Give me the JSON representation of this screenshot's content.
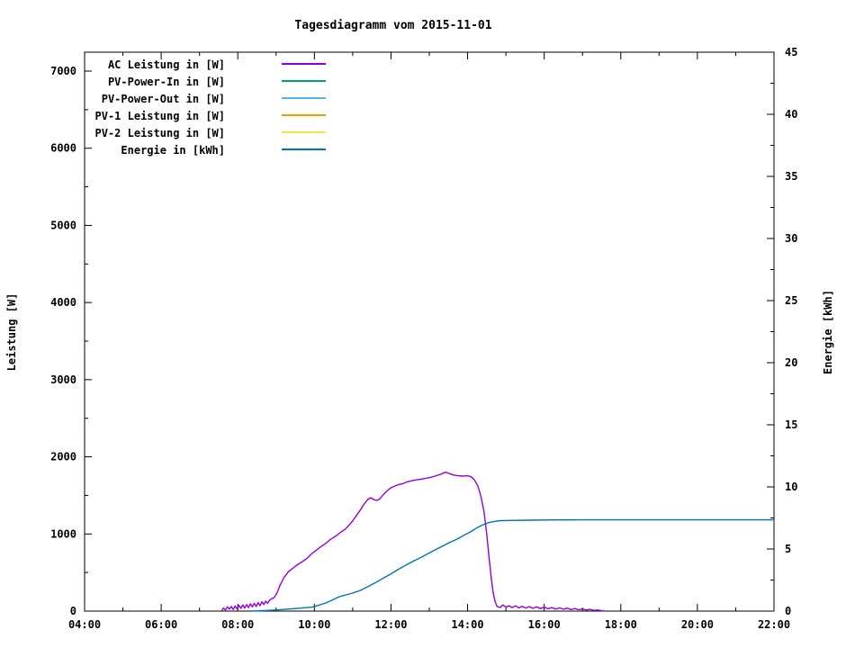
{
  "chart_data": {
    "type": "line",
    "title": "Tagesdiagramm vom 2015-11-01",
    "grid": false,
    "legend_position": "top-left-inside",
    "x": {
      "min": 4,
      "max": 22,
      "tick_step_hours": 2,
      "minor_step_hours": 1,
      "tick_labels": [
        "04:00",
        "06:00",
        "08:00",
        "10:00",
        "12:00",
        "14:00",
        "16:00",
        "18:00",
        "20:00",
        "22:00"
      ]
    },
    "y_left": {
      "label": "Leistung [W]",
      "min": 0,
      "max": 7000,
      "tick_step": 1000,
      "minor_step": 500,
      "tick_labels": [
        "0",
        "1000",
        "2000",
        "3000",
        "4000",
        "5000",
        "6000",
        "7000"
      ]
    },
    "y_right": {
      "label": "Energie [kWh]",
      "min": 0,
      "max": 45,
      "tick_step": 5,
      "minor_step": 2.5,
      "tick_labels": [
        "0",
        "5",
        "10",
        "15",
        "20",
        "25",
        "30",
        "35",
        "40",
        "45"
      ]
    },
    "series": [
      {
        "name": "AC Leistung in [W]",
        "color": "#9400d3",
        "axis": "left",
        "points": [
          [
            7.58,
            5
          ],
          [
            7.63,
            40
          ],
          [
            7.68,
            15
          ],
          [
            7.73,
            55
          ],
          [
            7.78,
            25
          ],
          [
            7.83,
            60
          ],
          [
            7.88,
            20
          ],
          [
            7.93,
            65
          ],
          [
            7.98,
            30
          ],
          [
            8.03,
            75
          ],
          [
            8.08,
            35
          ],
          [
            8.13,
            80
          ],
          [
            8.18,
            40
          ],
          [
            8.23,
            85
          ],
          [
            8.28,
            45
          ],
          [
            8.33,
            95
          ],
          [
            8.38,
            55
          ],
          [
            8.43,
            100
          ],
          [
            8.48,
            60
          ],
          [
            8.53,
            110
          ],
          [
            8.58,
            70
          ],
          [
            8.63,
            120
          ],
          [
            8.68,
            85
          ],
          [
            8.73,
            130
          ],
          [
            8.78,
            100
          ],
          [
            8.83,
            140
          ],
          [
            8.88,
            160
          ],
          [
            8.95,
            175
          ],
          [
            9.02,
            230
          ],
          [
            9.1,
            330
          ],
          [
            9.2,
            430
          ],
          [
            9.32,
            510
          ],
          [
            9.45,
            560
          ],
          [
            9.55,
            600
          ],
          [
            9.68,
            640
          ],
          [
            9.8,
            680
          ],
          [
            9.92,
            740
          ],
          [
            10.05,
            790
          ],
          [
            10.18,
            840
          ],
          [
            10.3,
            880
          ],
          [
            10.42,
            930
          ],
          [
            10.55,
            970
          ],
          [
            10.68,
            1020
          ],
          [
            10.8,
            1060
          ],
          [
            10.9,
            1110
          ],
          [
            11.0,
            1170
          ],
          [
            11.1,
            1240
          ],
          [
            11.2,
            1310
          ],
          [
            11.3,
            1390
          ],
          [
            11.4,
            1450
          ],
          [
            11.47,
            1470
          ],
          [
            11.55,
            1445
          ],
          [
            11.62,
            1435
          ],
          [
            11.7,
            1450
          ],
          [
            11.8,
            1510
          ],
          [
            11.9,
            1560
          ],
          [
            12.0,
            1600
          ],
          [
            12.1,
            1620
          ],
          [
            12.2,
            1640
          ],
          [
            12.3,
            1650
          ],
          [
            12.42,
            1675
          ],
          [
            12.55,
            1690
          ],
          [
            12.7,
            1705
          ],
          [
            12.85,
            1715
          ],
          [
            13.0,
            1730
          ],
          [
            13.15,
            1750
          ],
          [
            13.3,
            1775
          ],
          [
            13.42,
            1800
          ],
          [
            13.52,
            1785
          ],
          [
            13.62,
            1765
          ],
          [
            13.75,
            1755
          ],
          [
            13.88,
            1750
          ],
          [
            14.0,
            1755
          ],
          [
            14.1,
            1740
          ],
          [
            14.18,
            1700
          ],
          [
            14.27,
            1620
          ],
          [
            14.35,
            1480
          ],
          [
            14.43,
            1280
          ],
          [
            14.5,
            1000
          ],
          [
            14.56,
            700
          ],
          [
            14.62,
            420
          ],
          [
            14.67,
            230
          ],
          [
            14.72,
            120
          ],
          [
            14.77,
            60
          ],
          [
            14.85,
            45
          ],
          [
            14.92,
            80
          ],
          [
            15.0,
            50
          ],
          [
            15.08,
            70
          ],
          [
            15.16,
            45
          ],
          [
            15.25,
            68
          ],
          [
            15.34,
            42
          ],
          [
            15.43,
            62
          ],
          [
            15.52,
            40
          ],
          [
            15.61,
            58
          ],
          [
            15.7,
            36
          ],
          [
            15.8,
            55
          ],
          [
            15.9,
            33
          ],
          [
            16.0,
            50
          ],
          [
            16.1,
            30
          ],
          [
            16.2,
            46
          ],
          [
            16.3,
            27
          ],
          [
            16.4,
            42
          ],
          [
            16.5,
            24
          ],
          [
            16.6,
            38
          ],
          [
            16.7,
            20
          ],
          [
            16.8,
            33
          ],
          [
            16.9,
            17
          ],
          [
            17.0,
            28
          ],
          [
            17.1,
            13
          ],
          [
            17.2,
            22
          ],
          [
            17.3,
            9
          ],
          [
            17.4,
            14
          ],
          [
            17.5,
            5
          ],
          [
            17.57,
            2
          ]
        ]
      },
      {
        "name": "PV-Power-In in [W]",
        "color": "#009e73",
        "axis": "left",
        "points": []
      },
      {
        "name": "PV-Power-Out in [W]",
        "color": "#56b4e9",
        "axis": "left",
        "points": []
      },
      {
        "name": "PV-1 Leistung in [W]",
        "color": "#e69f00",
        "axis": "left",
        "points": []
      },
      {
        "name": "PV-2 Leistung in [W]",
        "color": "#f0e442",
        "axis": "left",
        "points": []
      },
      {
        "name": "Energie in [kWh]",
        "color": "#0072b2",
        "axis": "right",
        "points": [
          [
            8.35,
            0
          ],
          [
            8.7,
            0.04
          ],
          [
            9.0,
            0.09
          ],
          [
            9.3,
            0.16
          ],
          [
            9.6,
            0.23
          ],
          [
            9.95,
            0.32
          ],
          [
            10.3,
            0.65
          ],
          [
            10.65,
            1.16
          ],
          [
            11.0,
            1.45
          ],
          [
            11.2,
            1.67
          ],
          [
            11.4,
            1.98
          ],
          [
            11.6,
            2.3
          ],
          [
            11.8,
            2.65
          ],
          [
            12.0,
            3.0
          ],
          [
            12.2,
            3.38
          ],
          [
            12.43,
            3.77
          ],
          [
            12.6,
            4.05
          ],
          [
            12.8,
            4.35
          ],
          [
            13.0,
            4.68
          ],
          [
            13.2,
            5.0
          ],
          [
            13.45,
            5.4
          ],
          [
            13.77,
            5.87
          ],
          [
            13.95,
            6.18
          ],
          [
            14.1,
            6.42
          ],
          [
            14.25,
            6.72
          ],
          [
            14.4,
            6.95
          ],
          [
            14.55,
            7.12
          ],
          [
            14.7,
            7.22
          ],
          [
            14.85,
            7.28
          ],
          [
            15.1,
            7.3
          ],
          [
            15.6,
            7.32
          ],
          [
            16.2,
            7.34
          ],
          [
            17.0,
            7.35
          ],
          [
            18.0,
            7.35
          ],
          [
            19.0,
            7.35
          ],
          [
            20.0,
            7.35
          ],
          [
            21.0,
            7.35
          ],
          [
            22.0,
            7.35
          ]
        ]
      }
    ]
  }
}
